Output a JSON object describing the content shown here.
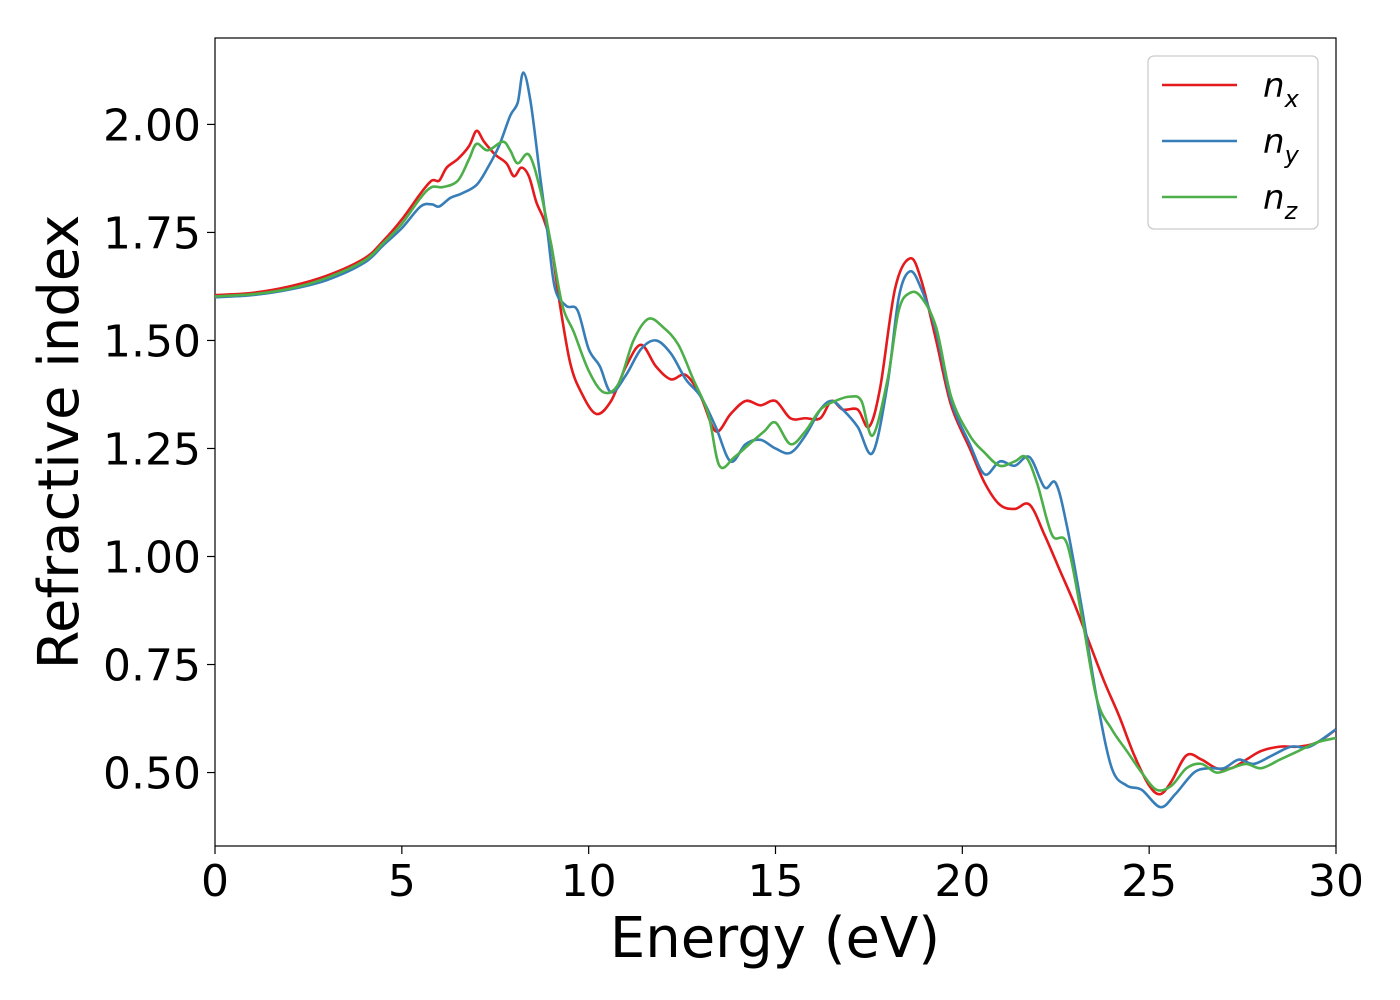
{
  "chart_data": {
    "type": "line",
    "xlabel": "Energy (eV)",
    "ylabel": "Refractive index",
    "xlim": [
      0,
      30
    ],
    "ylim": [
      0.33,
      2.2
    ],
    "x_ticks": [
      "0",
      "5",
      "10",
      "15",
      "20",
      "25",
      "30"
    ],
    "x_tick_values": [
      0,
      5,
      10,
      15,
      20,
      25,
      30
    ],
    "y_ticks": [
      "0.50",
      "0.75",
      "1.00",
      "1.25",
      "1.50",
      "1.75",
      "2.00"
    ],
    "y_tick_values": [
      0.5,
      0.75,
      1.0,
      1.25,
      1.5,
      1.75,
      2.0
    ],
    "grid": false,
    "legend_position": "top-right",
    "series": [
      {
        "name": "n",
        "subscript": "x",
        "color": "#e41a1c",
        "points": [
          [
            0,
            1.605
          ],
          [
            1,
            1.61
          ],
          [
            2,
            1.625
          ],
          [
            3,
            1.65
          ],
          [
            4,
            1.69
          ],
          [
            4.5,
            1.73
          ],
          [
            5,
            1.78
          ],
          [
            5.5,
            1.84
          ],
          [
            5.8,
            1.87
          ],
          [
            6,
            1.87
          ],
          [
            6.2,
            1.9
          ],
          [
            6.5,
            1.92
          ],
          [
            6.8,
            1.95
          ],
          [
            7.0,
            1.985
          ],
          [
            7.2,
            1.96
          ],
          [
            7.5,
            1.93
          ],
          [
            7.8,
            1.91
          ],
          [
            8.0,
            1.88
          ],
          [
            8.2,
            1.9
          ],
          [
            8.4,
            1.88
          ],
          [
            8.6,
            1.82
          ],
          [
            8.8,
            1.78
          ],
          [
            9.0,
            1.72
          ],
          [
            9.2,
            1.6
          ],
          [
            9.5,
            1.45
          ],
          [
            9.8,
            1.38
          ],
          [
            10.2,
            1.33
          ],
          [
            10.6,
            1.36
          ],
          [
            11.0,
            1.44
          ],
          [
            11.4,
            1.49
          ],
          [
            11.8,
            1.44
          ],
          [
            12.2,
            1.41
          ],
          [
            12.6,
            1.42
          ],
          [
            13.0,
            1.37
          ],
          [
            13.4,
            1.29
          ],
          [
            13.8,
            1.33
          ],
          [
            14.2,
            1.36
          ],
          [
            14.6,
            1.35
          ],
          [
            15.0,
            1.36
          ],
          [
            15.4,
            1.32
          ],
          [
            15.8,
            1.32
          ],
          [
            16.2,
            1.32
          ],
          [
            16.5,
            1.36
          ],
          [
            16.8,
            1.34
          ],
          [
            17.2,
            1.34
          ],
          [
            17.5,
            1.3
          ],
          [
            17.8,
            1.39
          ],
          [
            18.2,
            1.62
          ],
          [
            18.6,
            1.69
          ],
          [
            18.9,
            1.64
          ],
          [
            19.3,
            1.5
          ],
          [
            19.7,
            1.35
          ],
          [
            20.2,
            1.25
          ],
          [
            20.6,
            1.17
          ],
          [
            21.0,
            1.12
          ],
          [
            21.4,
            1.11
          ],
          [
            21.8,
            1.12
          ],
          [
            22.2,
            1.05
          ],
          [
            22.6,
            0.97
          ],
          [
            23.0,
            0.89
          ],
          [
            23.4,
            0.8
          ],
          [
            23.8,
            0.71
          ],
          [
            24.2,
            0.63
          ],
          [
            24.6,
            0.54
          ],
          [
            25.0,
            0.47
          ],
          [
            25.3,
            0.45
          ],
          [
            25.6,
            0.48
          ],
          [
            26.0,
            0.54
          ],
          [
            26.4,
            0.53
          ],
          [
            26.8,
            0.51
          ],
          [
            27.2,
            0.51
          ],
          [
            27.6,
            0.53
          ],
          [
            28.0,
            0.55
          ],
          [
            28.5,
            0.56
          ],
          [
            29.0,
            0.56
          ],
          [
            29.5,
            0.57
          ],
          [
            30.0,
            0.6
          ]
        ]
      },
      {
        "name": "n",
        "subscript": "y",
        "color": "#377eb8",
        "points": [
          [
            0,
            1.6
          ],
          [
            1,
            1.605
          ],
          [
            2,
            1.618
          ],
          [
            3,
            1.64
          ],
          [
            4,
            1.68
          ],
          [
            4.5,
            1.72
          ],
          [
            5,
            1.76
          ],
          [
            5.5,
            1.81
          ],
          [
            5.8,
            1.815
          ],
          [
            6.0,
            1.81
          ],
          [
            6.3,
            1.83
          ],
          [
            6.6,
            1.84
          ],
          [
            7.0,
            1.86
          ],
          [
            7.3,
            1.9
          ],
          [
            7.6,
            1.95
          ],
          [
            7.9,
            2.02
          ],
          [
            8.1,
            2.05
          ],
          [
            8.25,
            2.12
          ],
          [
            8.45,
            2.05
          ],
          [
            8.7,
            1.88
          ],
          [
            8.9,
            1.75
          ],
          [
            9.1,
            1.62
          ],
          [
            9.4,
            1.58
          ],
          [
            9.7,
            1.57
          ],
          [
            10.0,
            1.48
          ],
          [
            10.3,
            1.44
          ],
          [
            10.6,
            1.38
          ],
          [
            11.0,
            1.42
          ],
          [
            11.4,
            1.48
          ],
          [
            11.8,
            1.5
          ],
          [
            12.2,
            1.47
          ],
          [
            12.6,
            1.41
          ],
          [
            13.0,
            1.37
          ],
          [
            13.4,
            1.3
          ],
          [
            13.8,
            1.22
          ],
          [
            14.2,
            1.26
          ],
          [
            14.6,
            1.27
          ],
          [
            15.0,
            1.25
          ],
          [
            15.4,
            1.24
          ],
          [
            15.8,
            1.28
          ],
          [
            16.2,
            1.34
          ],
          [
            16.5,
            1.36
          ],
          [
            16.8,
            1.34
          ],
          [
            17.2,
            1.3
          ],
          [
            17.6,
            1.24
          ],
          [
            18.0,
            1.4
          ],
          [
            18.3,
            1.6
          ],
          [
            18.6,
            1.66
          ],
          [
            18.9,
            1.62
          ],
          [
            19.3,
            1.52
          ],
          [
            19.7,
            1.36
          ],
          [
            20.2,
            1.26
          ],
          [
            20.6,
            1.19
          ],
          [
            21.0,
            1.22
          ],
          [
            21.4,
            1.21
          ],
          [
            21.8,
            1.23
          ],
          [
            22.2,
            1.16
          ],
          [
            22.5,
            1.17
          ],
          [
            22.8,
            1.07
          ],
          [
            23.2,
            0.88
          ],
          [
            23.6,
            0.67
          ],
          [
            24.0,
            0.51
          ],
          [
            24.4,
            0.47
          ],
          [
            24.8,
            0.46
          ],
          [
            25.3,
            0.42
          ],
          [
            25.7,
            0.45
          ],
          [
            26.2,
            0.5
          ],
          [
            26.6,
            0.51
          ],
          [
            27.0,
            0.51
          ],
          [
            27.4,
            0.53
          ],
          [
            27.8,
            0.52
          ],
          [
            28.3,
            0.54
          ],
          [
            28.8,
            0.56
          ],
          [
            29.3,
            0.56
          ],
          [
            30.0,
            0.6
          ]
        ]
      },
      {
        "name": "n",
        "subscript": "z",
        "color": "#4daf4a",
        "points": [
          [
            0,
            1.602
          ],
          [
            1,
            1.607
          ],
          [
            2,
            1.62
          ],
          [
            3,
            1.645
          ],
          [
            4,
            1.685
          ],
          [
            4.5,
            1.725
          ],
          [
            5,
            1.77
          ],
          [
            5.5,
            1.83
          ],
          [
            5.8,
            1.855
          ],
          [
            6.1,
            1.855
          ],
          [
            6.5,
            1.87
          ],
          [
            6.8,
            1.92
          ],
          [
            7.0,
            1.955
          ],
          [
            7.3,
            1.94
          ],
          [
            7.7,
            1.96
          ],
          [
            7.9,
            1.94
          ],
          [
            8.1,
            1.91
          ],
          [
            8.4,
            1.93
          ],
          [
            8.7,
            1.85
          ],
          [
            9.0,
            1.72
          ],
          [
            9.3,
            1.58
          ],
          [
            9.6,
            1.52
          ],
          [
            10.0,
            1.43
          ],
          [
            10.4,
            1.38
          ],
          [
            10.8,
            1.4
          ],
          [
            11.2,
            1.5
          ],
          [
            11.6,
            1.55
          ],
          [
            12.0,
            1.53
          ],
          [
            12.4,
            1.49
          ],
          [
            12.8,
            1.41
          ],
          [
            13.2,
            1.33
          ],
          [
            13.5,
            1.21
          ],
          [
            13.9,
            1.23
          ],
          [
            14.3,
            1.26
          ],
          [
            14.7,
            1.29
          ],
          [
            15.0,
            1.31
          ],
          [
            15.4,
            1.26
          ],
          [
            15.8,
            1.29
          ],
          [
            16.2,
            1.34
          ],
          [
            16.6,
            1.36
          ],
          [
            17.0,
            1.37
          ],
          [
            17.3,
            1.36
          ],
          [
            17.6,
            1.28
          ],
          [
            18.0,
            1.41
          ],
          [
            18.3,
            1.57
          ],
          [
            18.6,
            1.61
          ],
          [
            18.9,
            1.6
          ],
          [
            19.3,
            1.53
          ],
          [
            19.7,
            1.37
          ],
          [
            20.2,
            1.28
          ],
          [
            20.6,
            1.24
          ],
          [
            21.0,
            1.21
          ],
          [
            21.4,
            1.22
          ],
          [
            21.7,
            1.23
          ],
          [
            22.0,
            1.17
          ],
          [
            22.4,
            1.05
          ],
          [
            22.8,
            1.03
          ],
          [
            23.2,
            0.86
          ],
          [
            23.6,
            0.67
          ],
          [
            24.0,
            0.6
          ],
          [
            24.4,
            0.55
          ],
          [
            24.8,
            0.5
          ],
          [
            25.2,
            0.46
          ],
          [
            25.6,
            0.47
          ],
          [
            26.0,
            0.51
          ],
          [
            26.4,
            0.52
          ],
          [
            26.8,
            0.5
          ],
          [
            27.2,
            0.51
          ],
          [
            27.6,
            0.52
          ],
          [
            28.0,
            0.51
          ],
          [
            28.5,
            0.53
          ],
          [
            29.0,
            0.55
          ],
          [
            29.5,
            0.57
          ],
          [
            30.0,
            0.58
          ]
        ]
      }
    ]
  }
}
